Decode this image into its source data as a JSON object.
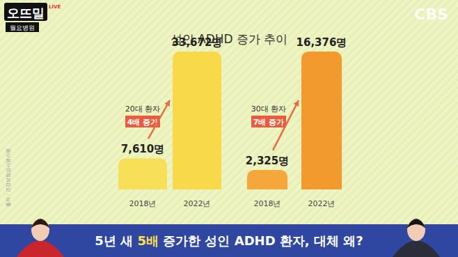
{
  "header": {
    "logo": "오뜨밀",
    "live": "LIVE",
    "program": "월요병원",
    "channel": "CBS"
  },
  "title": "성인 ADHD 증가 추이",
  "source": "출처 : 건강보험심사평가원",
  "chart_data": [
    {
      "type": "bar",
      "title": "20대 환자",
      "annotation": "4배 증가",
      "categories": [
        "2018년",
        "2022년"
      ],
      "values": [
        7610,
        33672
      ],
      "value_labels": [
        "7,610명",
        "33,672명"
      ],
      "colors": [
        "#f8df5a",
        "#f7d94a"
      ],
      "ylim": [
        0,
        33672
      ],
      "data_labels": true,
      "tick_labels": false,
      "grid": false
    },
    {
      "type": "bar",
      "title": "30대 환자",
      "annotation": "7배 증가",
      "categories": [
        "2018년",
        "2022년"
      ],
      "values": [
        2325,
        16376
      ],
      "value_labels": [
        "2,325명",
        "16,376명"
      ],
      "colors": [
        "#f5a73c",
        "#f29a2e"
      ],
      "ylim": [
        0,
        16376
      ],
      "data_labels": true,
      "tick_labels": false,
      "grid": false
    }
  ],
  "caption": {
    "before": "5년 새 ",
    "highlight": "5배",
    "after": " 증가한 성인 ADHD 환자, 대체 왜?"
  }
}
